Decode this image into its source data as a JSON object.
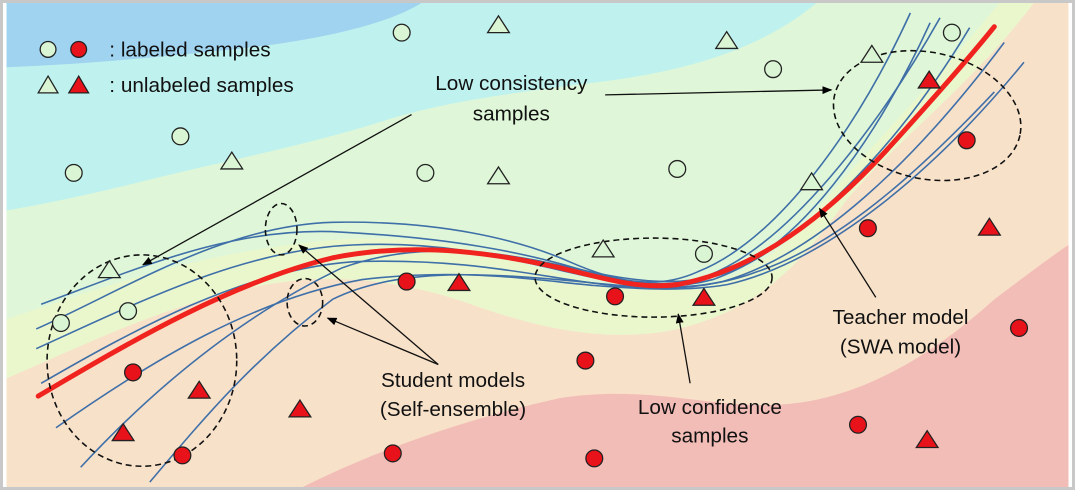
{
  "legend": {
    "labeled_text": ": labeled samples",
    "unlabeled_text": ": unlabeled samples",
    "labeled_icons": [
      "light-green-circle-icon",
      "red-circle-icon"
    ],
    "unlabeled_icons": [
      "light-green-triangle-icon",
      "red-triangle-icon"
    ]
  },
  "annotations": {
    "low_consistency_line1": "Low consistency",
    "low_consistency_line2": "samples",
    "low_confidence_line1": "Low confidence",
    "low_confidence_line2": "samples",
    "student_line1": "Student models",
    "student_line2": "(Self-ensemble)",
    "teacher_line1": "Teacher model",
    "teacher_line2": "(SWA model)"
  },
  "colors": {
    "class_a_fill": "#d9f5d3",
    "class_b_fill": "#e8121a",
    "teacher_curve": "#f0231e",
    "student_curves": "#3f6fa8",
    "background_blue": "#9fd3ef",
    "background_cyan": "#bff2ee",
    "background_green": "#dff7d8",
    "background_peach": "#f8e1c9",
    "background_pink": "#f2bcb7"
  }
}
